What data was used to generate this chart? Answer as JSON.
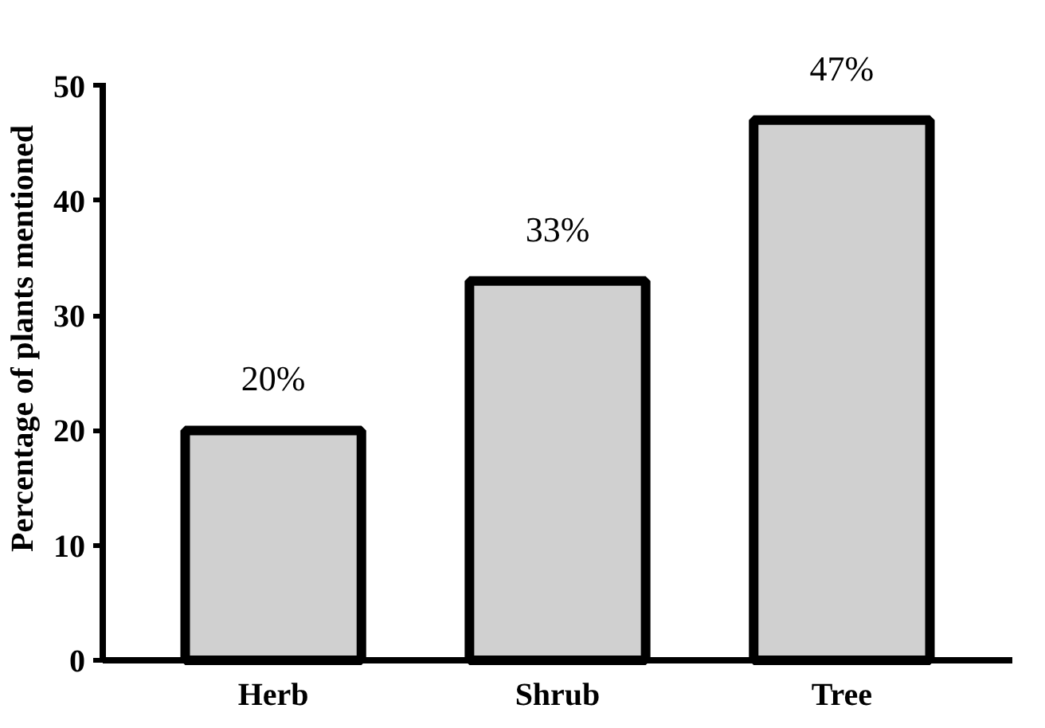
{
  "chart_data": {
    "type": "bar",
    "ylabel": "Percentage of plants mentioned",
    "categories": [
      "Herb",
      "Shrub",
      "Tree"
    ],
    "values": [
      20,
      33,
      47
    ],
    "value_labels": [
      "20%",
      "33%",
      "47%"
    ],
    "color": "#d0d0d0",
    "ylim": [
      0,
      50
    ],
    "yticks": [
      0,
      10,
      20,
      30,
      40,
      50
    ],
    "grid": false
  }
}
